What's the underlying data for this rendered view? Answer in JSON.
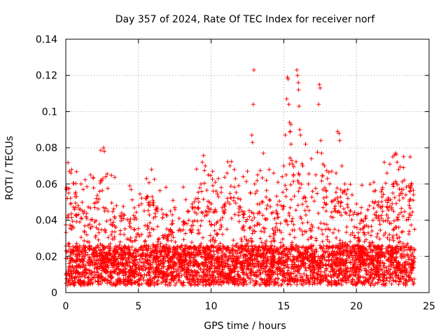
{
  "chart_data": {
    "type": "scatter",
    "title": "Day 357 of 2024, Rate Of TEC Index for receiver norf",
    "xlabel": "GPS time / hours",
    "ylabel": "ROTI / TECUs",
    "xlim": [
      0,
      25
    ],
    "ylim": [
      0,
      0.14
    ],
    "x_ticks": [
      0,
      5,
      10,
      15,
      20,
      25
    ],
    "x_tick_labels": [
      "0",
      "5",
      "10",
      "15",
      "20",
      "25"
    ],
    "y_ticks": [
      0,
      0.02,
      0.04,
      0.06,
      0.08,
      0.1,
      0.12,
      0.14
    ],
    "y_tick_labels": [
      "0",
      "0.02",
      "0.04",
      "0.06",
      "0.08",
      "0.1",
      "0.12",
      "0.14"
    ],
    "grid": true,
    "marker": "+",
    "color": "#ff0000",
    "series": [
      {
        "name": "ROTI",
        "points": [
          [
            0.05,
            0.057
          ],
          [
            0.1,
            0.052
          ],
          [
            0.25,
            0.067
          ],
          [
            0.35,
            0.066
          ],
          [
            0.4,
            0.068
          ],
          [
            0.6,
            0.046
          ],
          [
            0.7,
            0.043
          ],
          [
            0.85,
            0.048
          ],
          [
            1.05,
            0.06
          ],
          [
            1.2,
            0.057
          ],
          [
            1.45,
            0.041
          ],
          [
            1.7,
            0.065
          ],
          [
            2.0,
            0.047
          ],
          [
            2.2,
            0.05
          ],
          [
            2.4,
            0.062
          ],
          [
            2.55,
            0.063
          ],
          [
            2.6,
            0.08
          ],
          [
            2.65,
            0.078
          ],
          [
            2.75,
            0.064
          ],
          [
            2.9,
            0.045
          ],
          [
            3.2,
            0.037
          ],
          [
            3.45,
            0.036
          ],
          [
            3.85,
            0.044
          ],
          [
            4.0,
            0.043
          ],
          [
            4.4,
            0.059
          ],
          [
            4.5,
            0.057
          ],
          [
            4.7,
            0.035
          ],
          [
            5.2,
            0.049
          ],
          [
            5.5,
            0.052
          ],
          [
            5.55,
            0.063
          ],
          [
            5.65,
            0.053
          ],
          [
            6.0,
            0.051
          ],
          [
            6.3,
            0.045
          ],
          [
            6.6,
            0.046
          ],
          [
            6.9,
            0.043
          ],
          [
            7.2,
            0.045
          ],
          [
            7.5,
            0.047
          ],
          [
            7.8,
            0.041
          ],
          [
            8.1,
            0.039
          ],
          [
            8.4,
            0.045
          ],
          [
            8.7,
            0.049
          ],
          [
            8.9,
            0.047
          ],
          [
            9.1,
            0.052
          ],
          [
            9.3,
            0.06
          ],
          [
            9.4,
            0.072
          ],
          [
            9.6,
            0.07
          ],
          [
            9.8,
            0.065
          ],
          [
            10.1,
            0.067
          ],
          [
            10.3,
            0.061
          ],
          [
            10.5,
            0.063
          ],
          [
            10.7,
            0.058
          ],
          [
            11.1,
            0.066
          ],
          [
            11.3,
            0.07
          ],
          [
            11.6,
            0.068
          ],
          [
            11.9,
            0.059
          ],
          [
            12.2,
            0.064
          ],
          [
            12.5,
            0.067
          ],
          [
            12.8,
            0.087
          ],
          [
            12.85,
            0.083
          ],
          [
            12.9,
            0.104
          ],
          [
            12.95,
            0.123
          ],
          [
            13.0,
            0.06
          ],
          [
            13.2,
            0.065
          ],
          [
            13.6,
            0.077
          ],
          [
            13.8,
            0.062
          ],
          [
            14.0,
            0.068
          ],
          [
            14.3,
            0.066
          ],
          [
            14.6,
            0.061
          ],
          [
            14.9,
            0.064
          ],
          [
            15.0,
            0.07
          ],
          [
            15.1,
            0.087
          ],
          [
            15.2,
            0.107
          ],
          [
            15.25,
            0.119
          ],
          [
            15.3,
            0.118
          ],
          [
            15.35,
            0.104
          ],
          [
            15.4,
            0.094
          ],
          [
            15.45,
            0.089
          ],
          [
            15.5,
            0.082
          ],
          [
            15.55,
            0.073
          ],
          [
            15.6,
            0.071
          ],
          [
            15.9,
            0.123
          ],
          [
            15.95,
            0.12
          ],
          [
            16.0,
            0.116
          ],
          [
            16.02,
            0.112
          ],
          [
            16.05,
            0.103
          ],
          [
            16.1,
            0.09
          ],
          [
            16.15,
            0.087
          ],
          [
            16.3,
            0.07
          ],
          [
            16.5,
            0.082
          ],
          [
            16.7,
            0.06
          ],
          [
            16.9,
            0.074
          ],
          [
            17.2,
            0.065
          ],
          [
            17.4,
            0.104
          ],
          [
            17.45,
            0.115
          ],
          [
            17.5,
            0.113
          ],
          [
            17.55,
            0.084
          ],
          [
            17.6,
            0.077
          ],
          [
            17.7,
            0.071
          ],
          [
            17.8,
            0.07
          ],
          [
            18.0,
            0.063
          ],
          [
            18.3,
            0.067
          ],
          [
            18.6,
            0.066
          ],
          [
            18.7,
            0.089
          ],
          [
            18.8,
            0.088
          ],
          [
            18.85,
            0.084
          ],
          [
            19.0,
            0.07
          ],
          [
            19.2,
            0.06
          ],
          [
            19.4,
            0.057
          ],
          [
            19.7,
            0.054
          ],
          [
            20.0,
            0.049
          ],
          [
            20.3,
            0.044
          ],
          [
            20.6,
            0.041
          ],
          [
            20.9,
            0.048
          ],
          [
            21.2,
            0.056
          ],
          [
            21.5,
            0.05
          ],
          [
            21.8,
            0.058
          ],
          [
            22.1,
            0.066
          ],
          [
            22.3,
            0.071
          ],
          [
            22.5,
            0.075
          ],
          [
            22.6,
            0.076
          ],
          [
            22.7,
            0.077
          ],
          [
            22.8,
            0.072
          ],
          [
            22.9,
            0.068
          ],
          [
            23.1,
            0.057
          ],
          [
            23.4,
            0.054
          ],
          [
            23.6,
            0.059
          ],
          [
            23.7,
            0.075
          ],
          [
            23.8,
            0.06
          ],
          [
            23.9,
            0.051
          ],
          [
            24.0,
            0.035
          ]
        ]
      }
    ]
  }
}
